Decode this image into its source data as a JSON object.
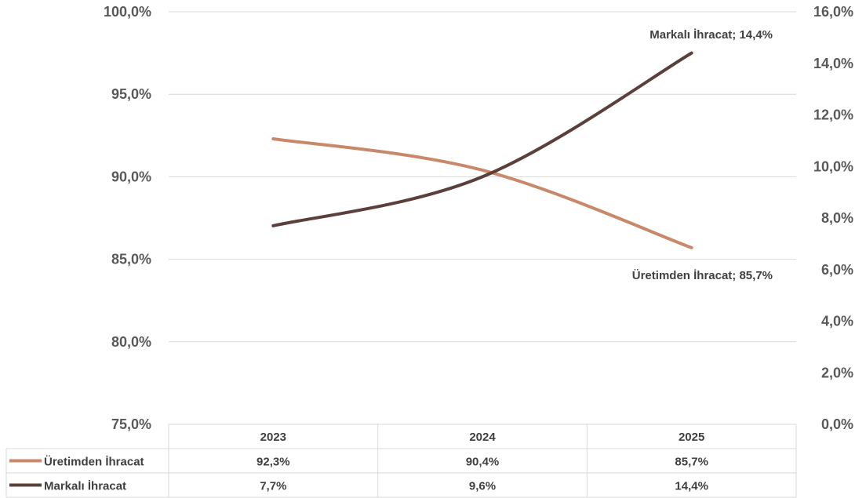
{
  "chart_data": {
    "type": "line",
    "categories": [
      "2023",
      "2024",
      "2025"
    ],
    "series": [
      {
        "name": "Üretimden İhracat",
        "axis": "left",
        "values": [
          92.3,
          90.4,
          85.7
        ],
        "labels": [
          "92,3%",
          "90,4%",
          "85,7%"
        ],
        "color": "#c8896a"
      },
      {
        "name": "Markalı İhracat",
        "axis": "right",
        "values": [
          7.7,
          9.6,
          14.4
        ],
        "labels": [
          "7,7%",
          "9,6%",
          "14,4%"
        ],
        "color": "#5a3f3a"
      }
    ],
    "y_left": {
      "range": [
        75,
        100
      ],
      "ticks": [
        "100,0%",
        "95,0%",
        "90,0%",
        "85,0%",
        "80,0%",
        "75,0%"
      ]
    },
    "y_right": {
      "range": [
        0,
        16
      ],
      "ticks": [
        "16,0%",
        "14,0%",
        "12,0%",
        "10,0%",
        "8,0%",
        "6,0%",
        "4,0%",
        "2,0%",
        "0,0%"
      ]
    },
    "annotations": [
      "Markalı İhracat; 14,4%",
      "Üretimden İhracat; 85,7%"
    ],
    "data_table": true,
    "grid": true
  }
}
